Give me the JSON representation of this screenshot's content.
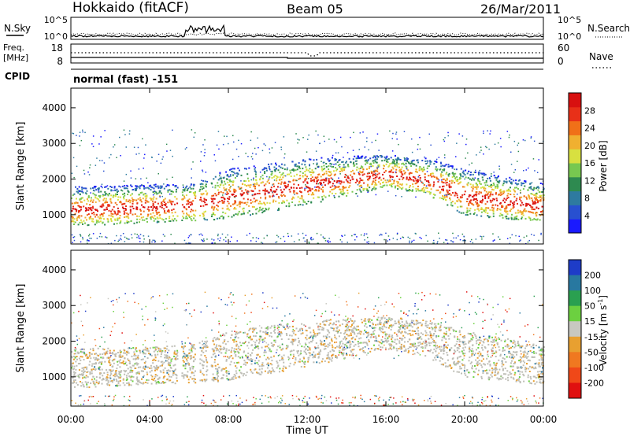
{
  "header": {
    "station": "Hokkaido (fitACF)",
    "beam": "Beam 05",
    "date": "26/Mar/2011"
  },
  "noise_panel": {
    "left_label": "N.Sky",
    "right_label": "N.Search",
    "left_ticks": [
      "10^5",
      "10^0"
    ],
    "right_ticks": [
      "10^5",
      "10^0"
    ]
  },
  "freq_panel": {
    "left_label_line1": "Freq.",
    "left_label_line2": "[MHz]",
    "left_ticks": [
      "18",
      "8"
    ],
    "right_ticks": [
      "60",
      "0"
    ],
    "right_label": "Nave"
  },
  "cpid": {
    "label": "CPID",
    "value": "normal (fast) -151"
  },
  "chart_data": [
    {
      "type": "heatmap",
      "panel": "power",
      "ylabel": "Slant Range [km]",
      "ylim": [
        180,
        4550
      ],
      "y_ticks": [
        "1000",
        "2000",
        "3000",
        "4000"
      ],
      "y_tick_values": [
        1000,
        2000,
        3000,
        4000
      ],
      "xlim": [
        0,
        24
      ],
      "colorbar": {
        "label": "Power [dB]",
        "tick_labels": [
          "4",
          "8",
          "12",
          "16",
          "20",
          "24",
          "28"
        ],
        "colors": [
          "#1a1aff",
          "#2850d0",
          "#2e7aa0",
          "#2e8a50",
          "#78c850",
          "#d8e040",
          "#f0b030",
          "#f07018",
          "#e83018",
          "#d81010"
        ]
      },
      "features": {
        "ionospheric_band": [
          {
            "t": 0,
            "lo": 900,
            "hi": 1400
          },
          {
            "t": 6,
            "lo": 1050,
            "hi": 1500
          },
          {
            "t": 8,
            "lo": 1100,
            "hi": 1900
          },
          {
            "t": 12,
            "lo": 1500,
            "hi": 2200
          },
          {
            "t": 16,
            "lo": 2000,
            "hi": 2300
          },
          {
            "t": 18,
            "lo": 1800,
            "hi": 2200
          },
          {
            "t": 20,
            "lo": 1200,
            "hi": 1900
          },
          {
            "t": 24,
            "lo": 1000,
            "hi": 1500
          }
        ],
        "data_gap_hours": [
          [
            5.4,
            5.6
          ],
          [
            6.3,
            6.5
          ],
          [
            6.9,
            7.1
          ]
        ]
      }
    },
    {
      "type": "heatmap",
      "panel": "velocity",
      "ylabel": "Slant Range [km]",
      "ylim": [
        180,
        4550
      ],
      "y_ticks": [
        "1000",
        "2000",
        "3000",
        "4000"
      ],
      "y_tick_values": [
        1000,
        2000,
        3000,
        4000
      ],
      "xlim": [
        0,
        24
      ],
      "xlabel": "Time UT",
      "x_ticks": [
        "00:00",
        "04:00",
        "08:00",
        "12:00",
        "16:00",
        "20:00",
        "00:00"
      ],
      "x_tick_values": [
        0,
        4,
        8,
        12,
        16,
        20,
        24
      ],
      "colorbar": {
        "label_main": "Velocity [m s",
        "label_sup": "-1",
        "label_end": "]",
        "tick_labels": [
          "200",
          "100",
          "50",
          "15",
          "-15",
          "-50",
          "-100",
          "-200"
        ],
        "colors": [
          "#1e3cc8",
          "#2878a0",
          "#2aa050",
          "#6cd040",
          "#c8c8c0",
          "#e8a030",
          "#f07820",
          "#f04818",
          "#e01010"
        ]
      },
      "ground_scatter_color": "#bdbdb5"
    }
  ]
}
